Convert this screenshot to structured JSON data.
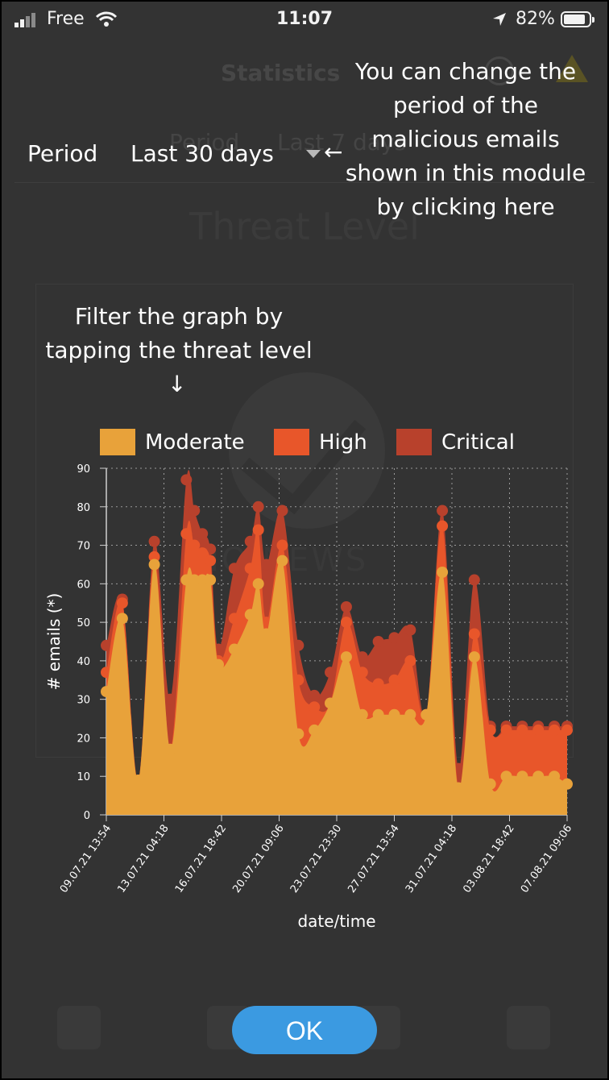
{
  "status_bar": {
    "carrier": "Free",
    "time": "11:07",
    "battery": "82%"
  },
  "background_app": {
    "title": "Statistics",
    "period_label": "Period",
    "period_value": "Last 7 days",
    "section_title": "Threat Level",
    "card_text": "NO NEWS"
  },
  "overlay": {
    "period_label": "Period",
    "period_value": "Last 30 days",
    "arrow_left": "←",
    "tip_period": "You can change the period of the malicious emails shown in this module by clicking here",
    "tip_filter": "Filter the graph by tapping the threat level",
    "arrow_down": "↓",
    "ok_label": "OK"
  },
  "legend": [
    {
      "label": "Moderate",
      "color": "#e8a23a"
    },
    {
      "label": "High",
      "color": "#e8562a"
    },
    {
      "label": "Critical",
      "color": "#b8412c"
    }
  ],
  "chart_data": {
    "type": "area",
    "xlabel": "date/time",
    "ylabel": "# emails (*)",
    "ylim": [
      0,
      90
    ],
    "yticks": [
      0,
      10,
      20,
      30,
      40,
      50,
      60,
      70,
      80,
      90
    ],
    "xtick_labels": [
      "09.07.21 13:54",
      "13.07.21 04:18",
      "16.07.21 18:42",
      "20.07.21 09:06",
      "23.07.21 23:30",
      "27.07.21 13:54",
      "31.07.21 04:18",
      "03.08.21 18:42",
      "07.08.21 09:06"
    ],
    "x_range_days": [
      0,
      28.8
    ],
    "grid": true,
    "x": [
      0,
      1,
      2,
      3,
      4,
      5,
      5.5,
      6,
      6.5,
      7,
      8,
      9,
      9.5,
      10,
      11,
      12,
      13,
      14,
      15,
      16,
      17,
      18,
      19,
      20,
      21,
      22,
      23,
      24,
      25,
      26,
      27,
      28,
      28.8
    ],
    "series": [
      {
        "name": "Moderate",
        "color": "#e8a23a",
        "values": [
          32,
          51,
          9,
          65,
          17,
          61,
          61,
          61,
          61,
          39,
          43,
          52,
          60,
          47,
          66,
          21,
          22,
          29,
          41,
          26,
          26,
          26,
          26,
          26,
          63,
          7,
          41,
          8,
          10,
          10,
          10,
          10,
          8
        ]
      },
      {
        "name": "High",
        "color": "#e8562a",
        "values": [
          37,
          55,
          9,
          67,
          17,
          73,
          70,
          68,
          66,
          40,
          51,
          64,
          74,
          50,
          70,
          35,
          28,
          29,
          50,
          37,
          34,
          35,
          40,
          26,
          75,
          7,
          47,
          22,
          22,
          22,
          22,
          22,
          22
        ]
      },
      {
        "name": "Critical",
        "color": "#b8412c",
        "values": [
          44,
          56,
          9,
          71,
          30,
          87,
          79,
          73,
          69,
          43,
          64,
          71,
          80,
          65,
          79,
          44,
          31,
          37,
          54,
          41,
          45,
          46,
          48,
          26,
          79,
          12,
          61,
          23,
          23,
          23,
          23,
          23,
          23
        ]
      }
    ]
  }
}
